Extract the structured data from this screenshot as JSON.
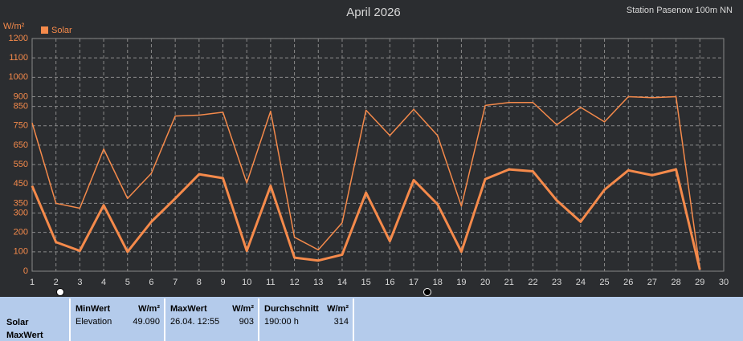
{
  "chart_data": {
    "type": "line",
    "title": "April 2026",
    "subtitle": "Station Pasenow 100m NN",
    "y_label": "W/m²",
    "x": [
      1,
      2,
      3,
      4,
      5,
      6,
      7,
      8,
      9,
      10,
      11,
      12,
      13,
      14,
      15,
      16,
      17,
      18,
      19,
      20,
      21,
      22,
      23,
      24,
      25,
      26,
      27,
      28,
      29,
      30
    ],
    "series": [
      {
        "name": "Solar",
        "color": "#f58a4b",
        "width": 3,
        "values": [
          440,
          150,
          105,
          340,
          100,
          255,
          375,
          500,
          480,
          105,
          440,
          70,
          55,
          85,
          405,
          155,
          470,
          345,
          100,
          475,
          525,
          515,
          365,
          255,
          420,
          520,
          495,
          525,
          8,
          null
        ]
      },
      {
        "color": "#f58a4b",
        "width": 1.5,
        "values": [
          765,
          350,
          325,
          630,
          375,
          505,
          800,
          805,
          820,
          455,
          825,
          175,
          110,
          250,
          830,
          700,
          835,
          700,
          335,
          855,
          870,
          870,
          755,
          845,
          770,
          900,
          895,
          900,
          12,
          null
        ]
      }
    ],
    "xlim": [
      1,
      30
    ],
    "xticks": [
      1,
      2,
      3,
      4,
      5,
      6,
      7,
      8,
      9,
      10,
      11,
      12,
      13,
      14,
      15,
      16,
      17,
      18,
      19,
      20,
      21,
      22,
      23,
      24,
      25,
      26,
      27,
      28,
      29,
      30
    ],
    "ylim": [
      0,
      1200
    ],
    "yticks": [
      0,
      100,
      200,
      300,
      350,
      450,
      550,
      650,
      750,
      850,
      900,
      1000,
      1100,
      1200
    ],
    "grid": true
  },
  "stats": {
    "label": "Solar",
    "sublabel": "MaxWert",
    "columns": [
      {
        "title": "MinWert",
        "unit": "W/m²",
        "left": "Elevation",
        "right": "49.090"
      },
      {
        "title": "MaxWert",
        "unit": "W/m²",
        "left": "26.04.  12:55",
        "right": 903
      },
      {
        "title": "Durchschnitt",
        "unit": "W/m²",
        "left": "190:00 h",
        "right": 314
      }
    ]
  }
}
